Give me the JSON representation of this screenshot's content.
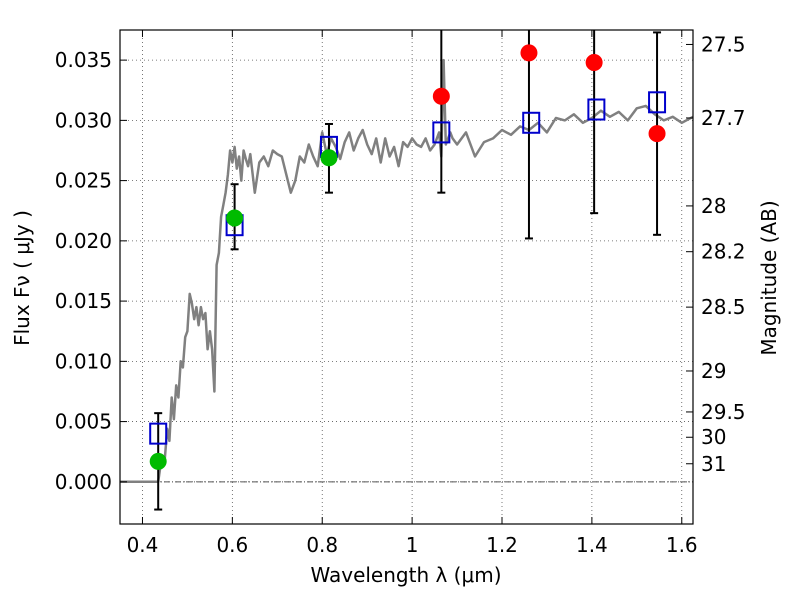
{
  "chart_data": {
    "type": "scatter",
    "xlabel": "Wavelength  λ (μm)",
    "ylabel": "Flux  Fν  ( μJy )",
    "y2label": "Magnitude (AB)",
    "xlim": [
      0.35,
      1.625
    ],
    "ylim": [
      -0.0035,
      0.0375
    ],
    "grid": true,
    "x_ticks": [
      0.4,
      0.6,
      0.8,
      1.0,
      1.2,
      1.4,
      1.6
    ],
    "x_tick_labels": [
      "0.4",
      "0.6",
      "0.8",
      "1",
      "1.2",
      "1.4",
      "1.6"
    ],
    "y_ticks": [
      0.0,
      0.005,
      0.01,
      0.015,
      0.02,
      0.025,
      0.03,
      0.035
    ],
    "y_tick_labels": [
      "0.000",
      "0.005",
      "0.010",
      "0.015",
      "0.020",
      "0.025",
      "0.030",
      "0.035"
    ],
    "mag_ticks": [
      {
        "label": "27.5",
        "flux": 0.0363
      },
      {
        "label": "27.7",
        "flux": 0.0302
      },
      {
        "label": "28",
        "flux": 0.0229
      },
      {
        "label": "28.2",
        "flux": 0.0191
      },
      {
        "label": "28.5",
        "flux": 0.0145
      },
      {
        "label": "29",
        "flux": 0.0092
      },
      {
        "label": "29.5",
        "flux": 0.0058
      },
      {
        "label": "30",
        "flux": 0.0037
      },
      {
        "label": "31",
        "flux": 0.0015
      }
    ],
    "spectrum": {
      "color": "#808080",
      "x": [
        0.35,
        0.38,
        0.4,
        0.42,
        0.43,
        0.435,
        0.44,
        0.45,
        0.455,
        0.46,
        0.465,
        0.47,
        0.475,
        0.48,
        0.485,
        0.49,
        0.495,
        0.5,
        0.505,
        0.51,
        0.515,
        0.52,
        0.525,
        0.53,
        0.535,
        0.54,
        0.545,
        0.55,
        0.555,
        0.56,
        0.565,
        0.57,
        0.575,
        0.58,
        0.585,
        0.59,
        0.595,
        0.6,
        0.605,
        0.61,
        0.615,
        0.62,
        0.625,
        0.63,
        0.635,
        0.64,
        0.65,
        0.66,
        0.67,
        0.68,
        0.69,
        0.7,
        0.71,
        0.72,
        0.73,
        0.74,
        0.75,
        0.76,
        0.77,
        0.78,
        0.79,
        0.8,
        0.81,
        0.82,
        0.83,
        0.84,
        0.85,
        0.86,
        0.87,
        0.88,
        0.89,
        0.9,
        0.91,
        0.92,
        0.93,
        0.94,
        0.95,
        0.96,
        0.97,
        0.98,
        0.99,
        1.0,
        1.01,
        1.02,
        1.03,
        1.04,
        1.05,
        1.06,
        1.065,
        1.07,
        1.075,
        1.08,
        1.085,
        1.09,
        1.1,
        1.12,
        1.14,
        1.16,
        1.18,
        1.2,
        1.22,
        1.24,
        1.26,
        1.28,
        1.3,
        1.32,
        1.34,
        1.36,
        1.38,
        1.4,
        1.42,
        1.44,
        1.46,
        1.48,
        1.5,
        1.52,
        1.54,
        1.56,
        1.58,
        1.6,
        1.625
      ],
      "y": [
        0.0,
        0.0,
        0.0,
        0.0,
        0.0,
        0.0,
        0.0013,
        0.002,
        0.0044,
        0.0034,
        0.007,
        0.0052,
        0.008,
        0.007,
        0.01,
        0.0095,
        0.012,
        0.0125,
        0.0156,
        0.0148,
        0.0135,
        0.0145,
        0.013,
        0.0145,
        0.0135,
        0.014,
        0.011,
        0.0125,
        0.011,
        0.0075,
        0.018,
        0.019,
        0.022,
        0.023,
        0.024,
        0.0255,
        0.0275,
        0.0265,
        0.0278,
        0.026,
        0.027,
        0.025,
        0.0275,
        0.0268,
        0.0262,
        0.0272,
        0.024,
        0.0265,
        0.027,
        0.0262,
        0.0275,
        0.0272,
        0.027,
        0.0255,
        0.024,
        0.025,
        0.027,
        0.0265,
        0.028,
        0.027,
        0.0262,
        0.029,
        0.0272,
        0.0285,
        0.0278,
        0.0268,
        0.0282,
        0.029,
        0.0275,
        0.0285,
        0.0292,
        0.028,
        0.0272,
        0.0285,
        0.0265,
        0.0285,
        0.027,
        0.0278,
        0.0262,
        0.0282,
        0.0278,
        0.0285,
        0.028,
        0.0278,
        0.0285,
        0.0275,
        0.028,
        0.029,
        0.027,
        0.035,
        0.028,
        0.0285,
        0.029,
        0.0285,
        0.028,
        0.029,
        0.027,
        0.0282,
        0.0285,
        0.0292,
        0.0288,
        0.0295,
        0.0292,
        0.0298,
        0.029,
        0.0302,
        0.03,
        0.0305,
        0.0298,
        0.0302,
        0.0308,
        0.0303,
        0.0307,
        0.03,
        0.031,
        0.0312,
        0.0305,
        0.03,
        0.0303,
        0.0298,
        0.0303
      ]
    },
    "series": [
      {
        "marker": "open-square",
        "color": "#0000cc",
        "x": [
          0.435,
          0.605,
          0.815,
          1.065,
          1.265,
          1.41,
          1.545
        ],
        "y": [
          0.004,
          0.0213,
          0.0278,
          0.029,
          0.0298,
          0.0309,
          0.0315
        ]
      },
      {
        "marker": "filled-circle",
        "color": "#00bb00",
        "x": [
          0.435,
          0.605,
          0.815
        ],
        "y": [
          0.0017,
          0.0219,
          0.0269
        ]
      },
      {
        "marker": "filled-circle",
        "color": "#ff0000",
        "x": [
          1.065,
          1.26,
          1.405,
          1.545
        ],
        "y": [
          0.032,
          0.0356,
          0.0348,
          0.0289
        ]
      }
    ],
    "errorbars": [
      {
        "x": 0.435,
        "low": -0.0023,
        "high": 0.0057
      },
      {
        "x": 0.605,
        "low": 0.0193,
        "high": 0.0247
      },
      {
        "x": 0.815,
        "low": 0.024,
        "high": 0.0297
      },
      {
        "x": 1.065,
        "low": 0.024,
        "high": 0.038
      },
      {
        "x": 1.26,
        "low": 0.0202,
        "high": 0.038
      },
      {
        "x": 1.405,
        "low": 0.0223,
        "high": 0.038
      },
      {
        "x": 1.545,
        "low": 0.0205,
        "high": 0.0373
      }
    ]
  }
}
